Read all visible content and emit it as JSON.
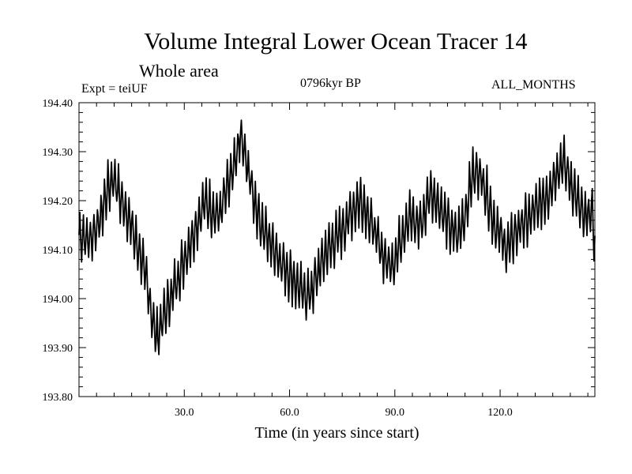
{
  "chart_data": {
    "type": "line",
    "title": "Volume Integral Lower Ocean Tracer 14",
    "subtitle": "Whole area",
    "expt_label": "Expt = teiUF",
    "date_label": "0796kyr BP",
    "months_label": "ALL_MONTHS",
    "xlabel": "Time (in years since start)",
    "ylabel": "",
    "xlim": [
      0,
      147
    ],
    "ylim": [
      193.8,
      194.4
    ],
    "xticks": [
      30,
      60,
      90,
      120
    ],
    "xtick_labels": [
      "30.0",
      "60.0",
      "90.0",
      "120.0"
    ],
    "yticks": [
      193.8,
      193.9,
      194.0,
      194.1,
      194.2,
      194.3,
      194.4
    ],
    "ytick_labels": [
      "193.80",
      "193.90",
      "194.00",
      "194.10",
      "194.20",
      "194.30",
      "194.40"
    ],
    "series": [
      {
        "name": "Tracer 14",
        "color": "#000000",
        "x": [
          0,
          3,
          6,
          8,
          10,
          12,
          14,
          16,
          18,
          20,
          22,
          24,
          27,
          30,
          33,
          36,
          38,
          40,
          42,
          44,
          46,
          48,
          50,
          52,
          54,
          56,
          58,
          60,
          62,
          64,
          66,
          68,
          70,
          72,
          75,
          78,
          80,
          82,
          84,
          86,
          88,
          90,
          92,
          94,
          96,
          98,
          100,
          102,
          104,
          106,
          108,
          110,
          112,
          114,
          116,
          118,
          120,
          122,
          124,
          126,
          128,
          130,
          132,
          134,
          136,
          138,
          140,
          142,
          144,
          146,
          147
        ],
        "y": [
          194.13,
          194.12,
          194.16,
          194.22,
          194.25,
          194.2,
          194.17,
          194.12,
          194.08,
          194.0,
          193.92,
          193.96,
          194.02,
          194.08,
          194.14,
          194.2,
          194.18,
          194.17,
          194.22,
          194.26,
          194.33,
          194.27,
          194.2,
          194.15,
          194.12,
          194.1,
          194.07,
          194.05,
          194.03,
          194.01,
          194.01,
          194.05,
          194.09,
          194.11,
          194.14,
          194.18,
          194.2,
          194.18,
          194.14,
          194.1,
          194.07,
          194.08,
          194.13,
          194.17,
          194.15,
          194.16,
          194.22,
          194.2,
          194.17,
          194.14,
          194.13,
          194.17,
          194.25,
          194.26,
          194.22,
          194.16,
          194.13,
          194.1,
          194.13,
          194.15,
          194.16,
          194.18,
          194.2,
          194.22,
          194.26,
          194.28,
          194.24,
          194.2,
          194.16,
          194.18,
          194.12
        ]
      }
    ]
  }
}
